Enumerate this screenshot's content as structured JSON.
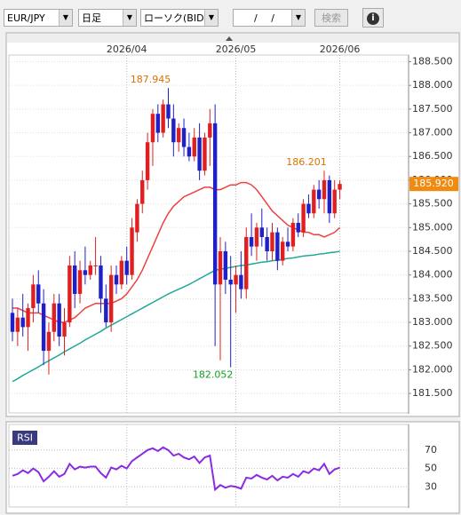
{
  "toolbar": {
    "pair": "EUR/JPY",
    "period": "日足",
    "chart_kind": "ローソク(BID)",
    "date": "/ /",
    "search": "検索",
    "info": "i"
  },
  "chart_data": [
    {
      "type": "candlestick",
      "categories": [
        null,
        null,
        null,
        null,
        null,
        null,
        null,
        null,
        null,
        null,
        null,
        null,
        null,
        null,
        null,
        null,
        null,
        null,
        null,
        null,
        null,
        null,
        "2026/04",
        null,
        null,
        null,
        null,
        null,
        null,
        null,
        null,
        null,
        null,
        null,
        null,
        null,
        null,
        null,
        null,
        null,
        null,
        null,
        null,
        "2026/05",
        null,
        null,
        null,
        null,
        null,
        null,
        null,
        null,
        null,
        null,
        null,
        null,
        null,
        null,
        null,
        null,
        null,
        null,
        null,
        "2026/06"
      ],
      "open": [
        183.2,
        182.8,
        183.1,
        182.9,
        183.3,
        183.8,
        183.4,
        182.4,
        182.8,
        183.4,
        182.7,
        183.0,
        184.2,
        183.6,
        184.1,
        184.0,
        184.2,
        184.2,
        183.5,
        183.0,
        184.0,
        183.8,
        184.3,
        184.0,
        184.9,
        185.5,
        186.0,
        186.8,
        187.4,
        187.0,
        187.6,
        187.3,
        186.8,
        187.1,
        186.7,
        186.5,
        186.9,
        186.2,
        186.9,
        187.2,
        183.8,
        184.5,
        183.9,
        183.8,
        184.0,
        183.7,
        184.8,
        184.6,
        185.0,
        184.8,
        184.5,
        184.9,
        184.3,
        184.7,
        184.6,
        185.1,
        184.9,
        185.5,
        185.3,
        185.8,
        185.6,
        186.0,
        185.3,
        185.8
      ],
      "high": [
        183.5,
        183.3,
        183.6,
        183.4,
        184.0,
        184.1,
        183.7,
        183.0,
        183.6,
        183.6,
        183.3,
        184.4,
        184.5,
        184.3,
        184.6,
        184.3,
        184.8,
        184.4,
        183.8,
        184.2,
        184.2,
        184.4,
        184.6,
        185.2,
        185.6,
        186.2,
        187.0,
        187.5,
        187.6,
        187.7,
        187.945,
        187.6,
        187.2,
        187.3,
        187.0,
        187.1,
        187.2,
        187.0,
        187.5,
        187.6,
        184.8,
        184.7,
        184.4,
        184.2,
        184.5,
        185.0,
        185.3,
        185.1,
        185.4,
        185.0,
        185.1,
        185.0,
        184.8,
        185.0,
        185.2,
        185.3,
        185.6,
        185.7,
        185.9,
        186.0,
        186.201,
        186.1,
        186.0,
        186.0
      ],
      "low": [
        182.6,
        182.5,
        182.7,
        182.4,
        183.0,
        183.2,
        182.1,
        181.9,
        182.6,
        182.5,
        182.3,
        182.9,
        183.3,
        183.4,
        183.8,
        183.9,
        184.0,
        183.2,
        182.9,
        182.8,
        183.6,
        183.7,
        183.8,
        183.9,
        184.7,
        185.3,
        185.8,
        186.3,
        186.8,
        186.9,
        187.1,
        186.5,
        186.6,
        186.5,
        186.4,
        186.4,
        186.0,
        186.1,
        186.3,
        182.5,
        182.2,
        183.6,
        182.052,
        183.2,
        183.5,
        183.5,
        184.4,
        184.3,
        184.6,
        184.3,
        184.3,
        184.1,
        184.2,
        184.5,
        184.5,
        184.8,
        184.8,
        185.2,
        185.2,
        185.4,
        185.3,
        185.1,
        185.2,
        185.6
      ],
      "close": [
        182.8,
        183.1,
        182.9,
        183.3,
        183.8,
        183.4,
        182.4,
        182.8,
        183.4,
        182.7,
        183.0,
        184.2,
        183.6,
        184.1,
        184.0,
        184.2,
        184.2,
        183.5,
        183.0,
        184.0,
        183.8,
        184.3,
        184.0,
        185.0,
        185.5,
        186.0,
        186.8,
        187.4,
        187.0,
        187.6,
        187.3,
        186.8,
        187.1,
        186.7,
        186.5,
        186.9,
        186.2,
        186.9,
        187.2,
        183.8,
        184.5,
        183.9,
        183.8,
        184.0,
        183.7,
        184.8,
        184.6,
        185.0,
        184.8,
        184.5,
        184.9,
        184.3,
        184.7,
        184.6,
        185.1,
        184.9,
        185.5,
        185.3,
        185.8,
        185.6,
        186.0,
        185.3,
        185.8,
        185.92
      ],
      "up_color": "#e02020",
      "down_color": "#2020c8",
      "series": [
        {
          "color": "#f04040",
          "values": [
            183.3,
            183.3,
            183.25,
            183.2,
            183.2,
            183.2,
            183.15,
            183.1,
            183.05,
            183.0,
            183.0,
            183.05,
            183.1,
            183.2,
            183.3,
            183.35,
            183.4,
            183.4,
            183.4,
            183.4,
            183.45,
            183.5,
            183.6,
            183.75,
            183.9,
            184.1,
            184.35,
            184.6,
            184.85,
            185.1,
            185.3,
            185.45,
            185.55,
            185.65,
            185.7,
            185.75,
            185.8,
            185.85,
            185.85,
            185.8,
            185.8,
            185.85,
            185.9,
            185.9,
            185.95,
            185.95,
            185.9,
            185.8,
            185.65,
            185.5,
            185.35,
            185.25,
            185.15,
            185.05,
            185.0,
            184.95,
            184.9,
            184.9,
            184.85,
            184.85,
            184.8,
            184.85,
            184.9,
            185.0
          ]
        },
        {
          "color": "#20a898",
          "values": [
            181.75,
            181.81,
            181.88,
            181.94,
            182.0,
            182.06,
            182.13,
            182.19,
            182.25,
            182.31,
            182.38,
            182.44,
            182.5,
            182.56,
            182.63,
            182.69,
            182.75,
            182.81,
            182.88,
            182.94,
            183.0,
            183.06,
            183.12,
            183.18,
            183.24,
            183.3,
            183.36,
            183.42,
            183.48,
            183.54,
            183.6,
            183.65,
            183.7,
            183.75,
            183.8,
            183.86,
            183.92,
            183.98,
            184.04,
            184.1,
            184.12,
            184.14,
            184.16,
            184.18,
            184.2,
            184.21,
            184.23,
            184.25,
            184.27,
            184.28,
            184.3,
            184.31,
            184.33,
            184.35,
            184.36,
            184.38,
            184.4,
            184.41,
            184.42,
            184.44,
            184.45,
            184.47,
            184.48,
            184.5
          ]
        }
      ],
      "ylim": [
        181.09,
        188.64
      ],
      "yticks": [
        {
          "value": 188.5,
          "label": "188.500"
        },
        {
          "value": 188,
          "label": "188.000"
        },
        {
          "value": 187.5,
          "label": "187.500"
        },
        {
          "value": 187,
          "label": "187.000"
        },
        {
          "value": 186.5,
          "label": "186.500"
        },
        {
          "value": 186,
          "label": "186.000"
        },
        {
          "value": 185.5,
          "label": "185.500"
        },
        {
          "value": 185,
          "label": "185.000"
        },
        {
          "value": 184.5,
          "label": "184.500"
        },
        {
          "value": 184,
          "label": "184.000"
        },
        {
          "value": 183.5,
          "label": "183.500"
        },
        {
          "value": 183,
          "label": "183.000"
        },
        {
          "value": 182.5,
          "label": "182.500"
        },
        {
          "value": 182,
          "label": "182.000"
        },
        {
          "value": 181.5,
          "label": "181.500"
        }
      ],
      "annotations": [
        {
          "value": 187.945,
          "label": "187.945",
          "color": "#e07000"
        },
        {
          "value": 186.201,
          "label": "186.201",
          "color": "#e07000"
        },
        {
          "value": 182.052,
          "label": "182.052",
          "color": "#10a020"
        }
      ],
      "last_price": {
        "value": 185.92,
        "label": "185.920",
        "color": "#f08a10"
      },
      "grid": true
    },
    {
      "type": "line",
      "title": "RSI",
      "color": "#8a2be2",
      "values": [
        42,
        44,
        48,
        45,
        50,
        46,
        36,
        41,
        47,
        41,
        44,
        55,
        49,
        52,
        51,
        52,
        52,
        45,
        40,
        51,
        49,
        53,
        50,
        58,
        62,
        66,
        70,
        72,
        69,
        73,
        70,
        64,
        66,
        62,
        60,
        63,
        56,
        62,
        64,
        27,
        32,
        29,
        31,
        30,
        28,
        40,
        39,
        43,
        40,
        38,
        42,
        37,
        41,
        40,
        44,
        41,
        47,
        45,
        50,
        48,
        55,
        44,
        49,
        51
      ],
      "ylim": [
        8,
        98
      ],
      "yticks": [
        70,
        50,
        30
      ],
      "grid": true
    }
  ]
}
